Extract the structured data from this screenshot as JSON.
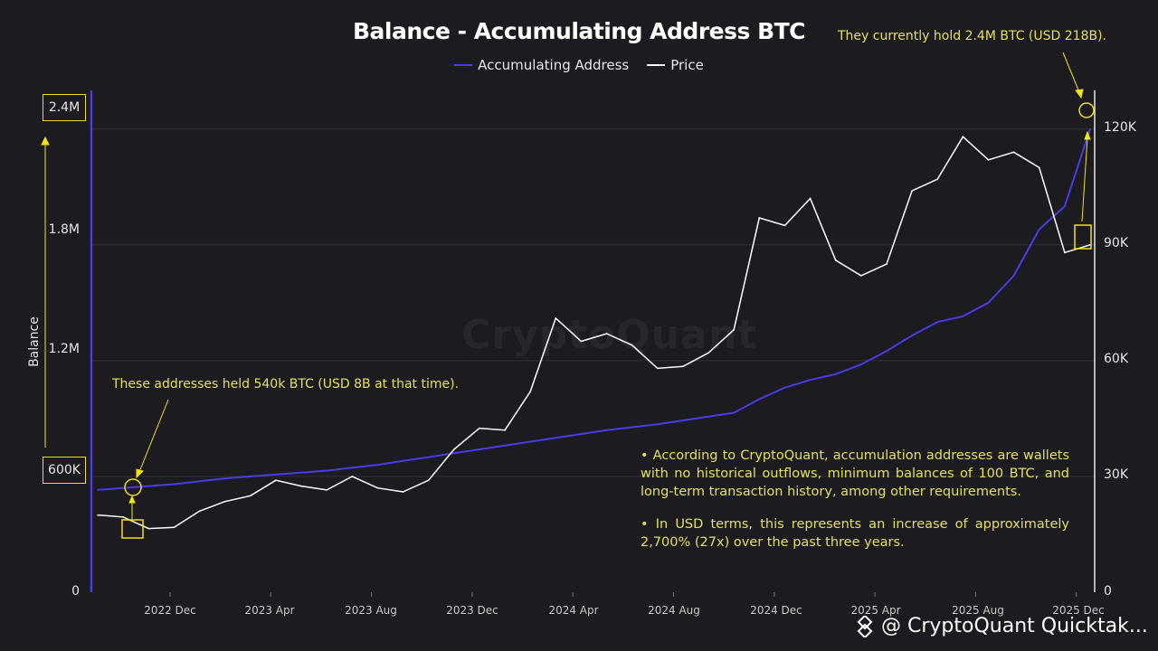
{
  "title": "Balance - Accumulating Address BTC",
  "legend": [
    {
      "label": "Accumulating Address",
      "color": "#4a3ae8"
    },
    {
      "label": "Price",
      "color": "#ffffff"
    }
  ],
  "y_axis_label": "Balance",
  "y_ticks_left": [
    "0",
    "600K",
    "1.2M",
    "1.8M",
    "2.4M"
  ],
  "y_ticks_right": [
    "0",
    "30K",
    "60K",
    "90K",
    "120K"
  ],
  "x_ticks": [
    "2022 Dec",
    "2023 Apr",
    "2023 Aug",
    "2023 Dec",
    "2024 Apr",
    "2024 Aug",
    "2024 Dec",
    "2025 Apr",
    "2025 Aug",
    "2025 Dec"
  ],
  "annotations": {
    "current": "They currently hold 2.4M BTC (USD 218B).",
    "past": "These addresses held 540k BTC (USD 8B at that time)."
  },
  "notes": [
    "• According to CryptoQuant, accumulation addresses are wallets with no historical outflows, minimum balances of 100 BTC, and long-term transaction history, among other requirements.",
    "• In USD terms, this represents an increase of approximately 2,700% (27x) over the past three years."
  ],
  "watermark": "CryptoQuant",
  "footer": "@ CryptoQuant Quicktak...",
  "colors": {
    "accent": "#f2e01a",
    "balance": "#4a3ae8",
    "price": "#ffffff",
    "annotation_text": "#e4e05c"
  },
  "chart_data": {
    "type": "line",
    "title": "Balance - Accumulating Address BTC",
    "ylabel": "Balance",
    "y_left_lim": [
      0,
      2400000
    ],
    "y_right_lim": [
      0,
      125000
    ],
    "grid": true,
    "legend_position": "top-center",
    "x": [
      "2022-09",
      "2022-10",
      "2022-11",
      "2022-12",
      "2023-01",
      "2023-02",
      "2023-03",
      "2023-04",
      "2023-05",
      "2023-06",
      "2023-07",
      "2023-08",
      "2023-09",
      "2023-10",
      "2023-11",
      "2023-12",
      "2024-01",
      "2024-02",
      "2024-03",
      "2024-04",
      "2024-05",
      "2024-06",
      "2024-07",
      "2024-08",
      "2024-09",
      "2024-10",
      "2024-11",
      "2024-12",
      "2025-01",
      "2025-02",
      "2025-03",
      "2025-04",
      "2025-05",
      "2025-06",
      "2025-07",
      "2025-08",
      "2025-09",
      "2025-10",
      "2025-11",
      "2025-12"
    ],
    "series": [
      {
        "name": "Accumulating Address",
        "axis": "left",
        "values": [
          530000,
          540000,
          550000,
          560000,
          575000,
          590000,
          600000,
          610000,
          620000,
          630000,
          645000,
          660000,
          680000,
          700000,
          720000,
          740000,
          760000,
          780000,
          800000,
          820000,
          840000,
          855000,
          870000,
          890000,
          910000,
          930000,
          1000000,
          1060000,
          1100000,
          1130000,
          1180000,
          1250000,
          1330000,
          1400000,
          1430000,
          1500000,
          1640000,
          1880000,
          2000000,
          2400000
        ]
      },
      {
        "name": "Price",
        "axis": "right",
        "values": [
          20000,
          19500,
          16500,
          16800,
          21000,
          23500,
          25000,
          29000,
          27500,
          26500,
          30000,
          27000,
          26000,
          29000,
          37000,
          42500,
          42000,
          52000,
          71000,
          65000,
          67000,
          64000,
          58000,
          58500,
          62000,
          68000,
          97000,
          95000,
          102000,
          86000,
          82000,
          85000,
          104000,
          107000,
          118000,
          112000,
          114000,
          110000,
          88000,
          90000
        ]
      }
    ]
  }
}
